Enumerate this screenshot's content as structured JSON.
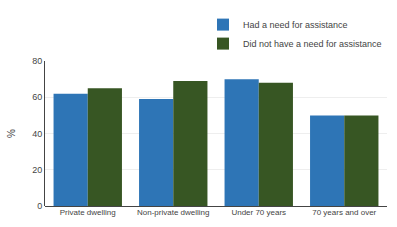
{
  "chart_data": {
    "type": "bar",
    "categories": [
      "Private dwelling",
      "Non-private dwelling",
      "Under 70 years",
      "70 years and over"
    ],
    "series": [
      {
        "name": "Had a need for assistance",
        "color": "#2E75B6",
        "values": [
          62,
          59,
          70,
          50
        ]
      },
      {
        "name": "Did not have a need for assistance",
        "color": "#375623",
        "values": [
          65,
          69,
          68,
          50
        ]
      }
    ],
    "ylabel": "%",
    "ylim": [
      0,
      80
    ],
    "yticks": [
      0,
      20,
      40,
      60,
      80
    ],
    "grid": true,
    "legend": "upper right"
  }
}
